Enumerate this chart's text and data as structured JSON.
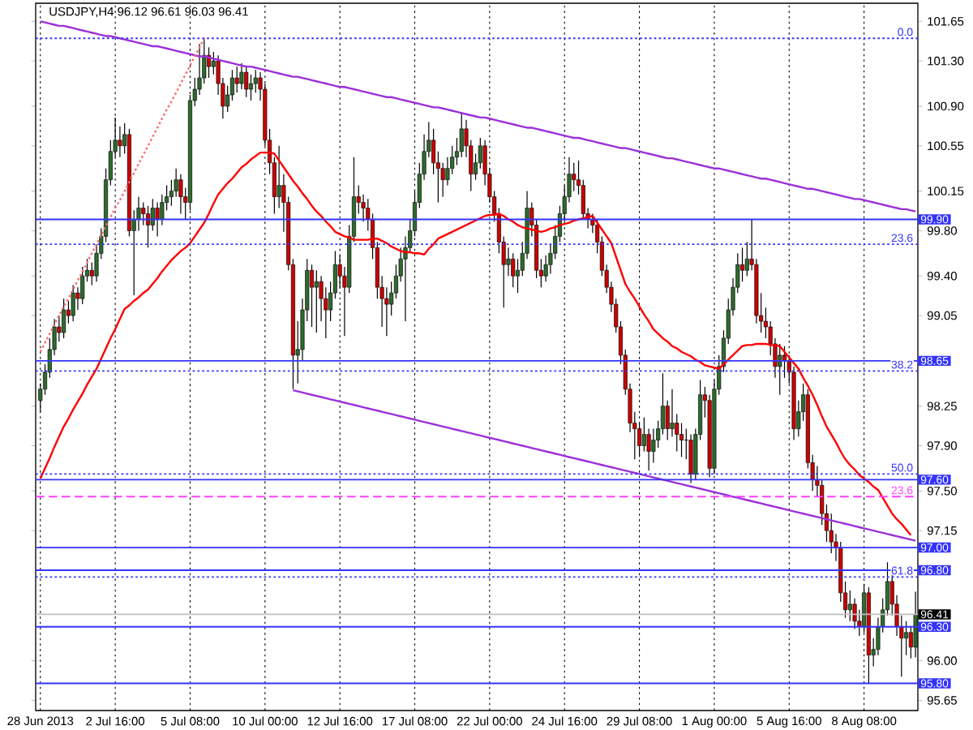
{
  "chart_data": {
    "type": "candlestick",
    "title": "USDJPY,H4  96.12 96.61 96.03 96.41",
    "categories": [
      "28 Jun 2013",
      null,
      null,
      null,
      null,
      null,
      null,
      null,
      null,
      null,
      null,
      null,
      null,
      null,
      null,
      null,
      "2 Jul 16:00",
      null,
      null,
      null,
      null,
      null,
      null,
      null,
      null,
      null,
      null,
      null,
      null,
      null,
      null,
      null,
      "5 Jul 08:00",
      null,
      null,
      null,
      null,
      null,
      null,
      null,
      null,
      null,
      null,
      null,
      null,
      null,
      null,
      null,
      "10 Jul 00:00",
      null,
      null,
      null,
      null,
      null,
      null,
      null,
      null,
      null,
      null,
      null,
      null,
      null,
      null,
      null,
      "12 Jul 16:00",
      null,
      null,
      null,
      null,
      null,
      null,
      null,
      null,
      null,
      null,
      null,
      null,
      null,
      null,
      null,
      "17 Jul 08:00",
      null,
      null,
      null,
      null,
      null,
      null,
      null,
      null,
      null,
      null,
      null,
      null,
      null,
      null,
      null,
      "22 Jul 00:00",
      null,
      null,
      null,
      null,
      null,
      null,
      null,
      null,
      null,
      null,
      null,
      null,
      null,
      null,
      null,
      "24 Jul 16:00",
      null,
      null,
      null,
      null,
      null,
      null,
      null,
      null,
      null,
      null,
      null,
      null,
      null,
      null,
      null,
      "29 Jul 08:00",
      null,
      null,
      null,
      null,
      null,
      null,
      null,
      null,
      null,
      null,
      null,
      null,
      null,
      null,
      null,
      "1 Aug 00:00",
      null,
      null,
      null,
      null,
      null,
      null,
      null,
      null,
      null,
      null,
      null,
      null,
      null,
      null,
      null,
      "5 Aug 16:00",
      null,
      null,
      null,
      null,
      null,
      null,
      null,
      null,
      null,
      null,
      null,
      null,
      null,
      null,
      null,
      "8 Aug 08:00",
      null,
      null,
      null,
      null,
      null,
      null,
      null,
      null,
      null,
      null,
      null
    ],
    "ohlc": [
      [
        98.3,
        98.45,
        98.2,
        98.4
      ],
      [
        98.4,
        98.62,
        98.35,
        98.55
      ],
      [
        98.55,
        98.85,
        98.5,
        98.75
      ],
      [
        98.75,
        99.02,
        98.7,
        98.95
      ],
      [
        98.95,
        99.05,
        98.82,
        98.9
      ],
      [
        98.9,
        99.2,
        98.85,
        99.1
      ],
      [
        99.1,
        99.18,
        98.98,
        99.05
      ],
      [
        99.05,
        99.32,
        99.0,
        99.25
      ],
      [
        99.25,
        99.3,
        99.1,
        99.2
      ],
      [
        99.2,
        99.48,
        99.15,
        99.4
      ],
      [
        99.4,
        99.55,
        99.35,
        99.45
      ],
      [
        99.45,
        99.52,
        99.32,
        99.4
      ],
      [
        99.4,
        99.68,
        99.35,
        99.6
      ],
      [
        99.6,
        99.82,
        99.55,
        99.75
      ],
      [
        99.75,
        100.35,
        99.7,
        100.25
      ],
      [
        100.25,
        100.6,
        100.2,
        100.5
      ],
      [
        100.5,
        100.8,
        100.45,
        100.6
      ],
      [
        100.6,
        100.72,
        100.45,
        100.55
      ],
      [
        100.55,
        100.75,
        100.48,
        100.65
      ],
      [
        100.65,
        100.7,
        99.75,
        99.8
      ],
      [
        99.8,
        99.98,
        99.23,
        99.9
      ],
      [
        99.9,
        100.1,
        99.8,
        100.0
      ],
      [
        100.0,
        100.05,
        99.85,
        99.95
      ],
      [
        99.95,
        100.02,
        99.65,
        99.85
      ],
      [
        99.85,
        100.08,
        99.8,
        100.0
      ],
      [
        100.0,
        100.05,
        99.75,
        99.9
      ],
      [
        99.9,
        100.12,
        99.85,
        100.05
      ],
      [
        100.05,
        100.2,
        99.98,
        100.1
      ],
      [
        100.1,
        100.25,
        100.02,
        100.15
      ],
      [
        100.15,
        100.35,
        100.1,
        100.25
      ],
      [
        100.25,
        100.3,
        99.95,
        100.1
      ],
      [
        100.1,
        100.18,
        99.9,
        100.05
      ],
      [
        100.05,
        101.0,
        99.98,
        100.95
      ],
      [
        100.95,
        101.15,
        100.9,
        101.05
      ],
      [
        101.05,
        101.45,
        101.0,
        101.15
      ],
      [
        101.15,
        101.5,
        101.1,
        101.35
      ],
      [
        101.35,
        101.42,
        101.15,
        101.25
      ],
      [
        101.25,
        101.38,
        101.18,
        101.3
      ],
      [
        101.3,
        101.35,
        101.0,
        101.1
      ],
      [
        101.1,
        101.15,
        100.79,
        100.9
      ],
      [
        100.9,
        101.08,
        100.85,
        101.0
      ],
      [
        101.0,
        101.22,
        100.95,
        101.15
      ],
      [
        101.15,
        101.25,
        101.02,
        101.1
      ],
      [
        101.1,
        101.28,
        101.05,
        101.2
      ],
      [
        101.2,
        101.25,
        100.98,
        101.05
      ],
      [
        101.05,
        101.18,
        100.95,
        101.1
      ],
      [
        101.1,
        101.22,
        101.02,
        101.15
      ],
      [
        101.15,
        101.2,
        100.95,
        101.05
      ],
      [
        101.05,
        101.1,
        100.55,
        100.6
      ],
      [
        100.6,
        100.7,
        100.3,
        100.4
      ],
      [
        100.4,
        100.45,
        99.95,
        100.1
      ],
      [
        100.1,
        100.55,
        100.0,
        100.2
      ],
      [
        100.2,
        100.3,
        99.79,
        100.05
      ],
      [
        100.05,
        100.1,
        99.45,
        99.5
      ],
      [
        99.5,
        99.55,
        98.4,
        98.7
      ],
      [
        98.7,
        99.0,
        98.45,
        98.75
      ],
      [
        98.75,
        99.2,
        98.65,
        99.1
      ],
      [
        99.1,
        99.55,
        99.0,
        99.45
      ],
      [
        99.45,
        99.5,
        98.95,
        99.3
      ],
      [
        99.3,
        99.45,
        98.9,
        99.35
      ],
      [
        99.35,
        99.4,
        99.0,
        99.2
      ],
      [
        99.2,
        99.3,
        98.85,
        99.1
      ],
      [
        99.1,
        99.35,
        99.0,
        99.25
      ],
      [
        99.25,
        99.62,
        99.2,
        99.5
      ],
      [
        99.5,
        99.58,
        99.3,
        99.4
      ],
      [
        99.4,
        99.48,
        98.87,
        99.3
      ],
      [
        99.3,
        99.85,
        99.25,
        99.75
      ],
      [
        99.75,
        100.45,
        99.7,
        100.1
      ],
      [
        100.1,
        100.2,
        99.95,
        100.05
      ],
      [
        100.05,
        100.12,
        99.88,
        100.0
      ],
      [
        100.0,
        100.08,
        99.8,
        99.9
      ],
      [
        99.9,
        99.95,
        99.55,
        99.65
      ],
      [
        99.65,
        99.7,
        99.2,
        99.3
      ],
      [
        99.3,
        99.4,
        98.95,
        99.2
      ],
      [
        99.2,
        99.3,
        98.87,
        99.15
      ],
      [
        99.15,
        99.35,
        99.05,
        99.25
      ],
      [
        99.25,
        99.5,
        99.2,
        99.4
      ],
      [
        99.4,
        99.65,
        99.35,
        99.55
      ],
      [
        99.55,
        99.75,
        99.0,
        99.65
      ],
      [
        99.65,
        99.9,
        99.6,
        99.8
      ],
      [
        99.8,
        100.15,
        99.75,
        100.05
      ],
      [
        100.05,
        100.4,
        100.0,
        100.3
      ],
      [
        100.3,
        100.65,
        100.25,
        100.5
      ],
      [
        100.5,
        100.76,
        100.45,
        100.6
      ],
      [
        100.6,
        100.7,
        100.3,
        100.4
      ],
      [
        100.4,
        100.5,
        100.05,
        100.35
      ],
      [
        100.35,
        100.4,
        100.1,
        100.25
      ],
      [
        100.25,
        100.45,
        100.2,
        100.35
      ],
      [
        100.35,
        100.55,
        100.3,
        100.45
      ],
      [
        100.45,
        100.62,
        100.38,
        100.5
      ],
      [
        100.5,
        100.85,
        100.45,
        100.7
      ],
      [
        100.7,
        100.78,
        100.45,
        100.55
      ],
      [
        100.55,
        100.6,
        100.15,
        100.3
      ],
      [
        100.3,
        100.48,
        100.25,
        100.4
      ],
      [
        100.4,
        100.62,
        100.35,
        100.55
      ],
      [
        100.55,
        100.6,
        100.2,
        100.3
      ],
      [
        100.3,
        100.35,
        100.05,
        100.1
      ],
      [
        100.1,
        100.15,
        99.88,
        99.95
      ],
      [
        99.95,
        100.0,
        99.6,
        99.7
      ],
      [
        99.7,
        99.75,
        99.12,
        99.5
      ],
      [
        99.5,
        99.65,
        99.4,
        99.55
      ],
      [
        99.55,
        99.6,
        99.3,
        99.4
      ],
      [
        99.4,
        99.55,
        99.25,
        99.45
      ],
      [
        99.45,
        99.7,
        99.4,
        99.6
      ],
      [
        99.6,
        100.15,
        99.55,
        100.0
      ],
      [
        100.0,
        100.05,
        99.75,
        99.85
      ],
      [
        99.85,
        99.9,
        99.38,
        99.45
      ],
      [
        99.45,
        99.55,
        99.3,
        99.4
      ],
      [
        99.4,
        99.58,
        99.35,
        99.5
      ],
      [
        99.5,
        99.68,
        99.42,
        99.6
      ],
      [
        99.6,
        99.85,
        99.55,
        99.75
      ],
      [
        99.75,
        100.02,
        99.7,
        99.95
      ],
      [
        99.95,
        100.2,
        99.88,
        100.1
      ],
      [
        100.1,
        100.45,
        100.05,
        100.3
      ],
      [
        100.3,
        100.4,
        100.15,
        100.25
      ],
      [
        100.25,
        100.42,
        100.12,
        100.2
      ],
      [
        100.2,
        100.25,
        99.9,
        99.95
      ],
      [
        99.95,
        100.0,
        99.82,
        99.9
      ],
      [
        99.9,
        99.95,
        99.78,
        99.85
      ],
      [
        99.85,
        99.9,
        99.6,
        99.7
      ],
      [
        99.7,
        99.75,
        99.4,
        99.45
      ],
      [
        99.45,
        99.5,
        99.25,
        99.3
      ],
      [
        99.3,
        99.35,
        99.08,
        99.15
      ],
      [
        99.15,
        99.2,
        98.9,
        98.95
      ],
      [
        98.95,
        99.0,
        98.62,
        98.7
      ],
      [
        98.7,
        98.75,
        98.35,
        98.4
      ],
      [
        98.4,
        98.45,
        98.02,
        98.1
      ],
      [
        98.1,
        98.2,
        97.78,
        98.05
      ],
      [
        98.05,
        98.1,
        97.8,
        97.9
      ],
      [
        97.9,
        98.15,
        97.85,
        98.0
      ],
      [
        98.0,
        98.05,
        97.68,
        97.85
      ],
      [
        97.85,
        98.05,
        97.75,
        97.95
      ],
      [
        97.95,
        98.12,
        97.88,
        98.05
      ],
      [
        98.05,
        98.54,
        98.0,
        98.25
      ],
      [
        98.25,
        98.3,
        97.95,
        98.05
      ],
      [
        98.05,
        98.4,
        97.98,
        98.1
      ],
      [
        98.1,
        98.18,
        97.85,
        98.0
      ],
      [
        98.0,
        98.1,
        97.8,
        97.95
      ],
      [
        97.95,
        98.05,
        97.78,
        97.95
      ],
      [
        97.95,
        98.0,
        97.57,
        97.65
      ],
      [
        97.65,
        98.05,
        97.6,
        98.0
      ],
      [
        98.0,
        98.48,
        97.95,
        98.35
      ],
      [
        98.35,
        98.42,
        98.15,
        98.3
      ],
      [
        98.3,
        98.35,
        97.62,
        97.7
      ],
      [
        97.7,
        98.48,
        97.65,
        98.4
      ],
      [
        98.4,
        98.7,
        98.35,
        98.6
      ],
      [
        98.6,
        98.92,
        98.55,
        98.85
      ],
      [
        98.85,
        99.2,
        98.8,
        99.1
      ],
      [
        99.1,
        99.38,
        99.05,
        99.3
      ],
      [
        99.3,
        99.6,
        99.25,
        99.5
      ],
      [
        99.5,
        99.65,
        99.35,
        99.45
      ],
      [
        99.45,
        99.7,
        99.4,
        99.55
      ],
      [
        99.55,
        99.9,
        99.45,
        99.5
      ],
      [
        99.5,
        99.55,
        98.98,
        99.05
      ],
      [
        99.05,
        99.25,
        98.9,
        99.0
      ],
      [
        99.0,
        99.12,
        98.85,
        98.95
      ],
      [
        98.95,
        99.0,
        98.7,
        98.8
      ],
      [
        98.8,
        98.85,
        98.5,
        98.6
      ],
      [
        98.6,
        98.8,
        98.35,
        98.7
      ],
      [
        98.7,
        98.78,
        98.5,
        98.65
      ],
      [
        98.65,
        98.7,
        98.45,
        98.55
      ],
      [
        98.55,
        98.6,
        97.95,
        98.05
      ],
      [
        98.05,
        98.3,
        97.98,
        98.2
      ],
      [
        98.2,
        98.45,
        98.12,
        98.35
      ],
      [
        98.35,
        98.4,
        97.7,
        97.75
      ],
      [
        97.75,
        97.82,
        97.5,
        97.6
      ],
      [
        97.6,
        97.72,
        97.45,
        97.55
      ],
      [
        97.55,
        97.6,
        97.2,
        97.3
      ],
      [
        97.3,
        97.38,
        97.05,
        97.15
      ],
      [
        97.15,
        97.3,
        96.95,
        97.05
      ],
      [
        97.05,
        97.12,
        96.88,
        97.0
      ],
      [
        97.0,
        97.05,
        96.52,
        96.6
      ],
      [
        96.6,
        96.7,
        96.38,
        96.45
      ],
      [
        96.45,
        96.62,
        96.35,
        96.5
      ],
      [
        96.5,
        96.55,
        96.28,
        96.35
      ],
      [
        96.35,
        96.45,
        96.22,
        96.3
      ],
      [
        96.3,
        96.68,
        96.25,
        96.6
      ],
      [
        96.6,
        96.65,
        95.8,
        96.05
      ],
      [
        96.05,
        96.2,
        95.95,
        96.1
      ],
      [
        96.1,
        96.38,
        96.05,
        96.3
      ],
      [
        96.3,
        96.55,
        96.25,
        96.45
      ],
      [
        96.45,
        96.87,
        96.4,
        96.7
      ],
      [
        96.7,
        96.78,
        96.4,
        96.5
      ],
      [
        96.5,
        96.58,
        96.22,
        96.3
      ],
      [
        96.3,
        96.4,
        95.86,
        96.2
      ],
      [
        96.2,
        96.35,
        96.05,
        96.25
      ],
      [
        96.25,
        96.3,
        96.02,
        96.12
      ],
      [
        96.12,
        96.61,
        96.03,
        96.41
      ]
    ],
    "series": [
      {
        "type": "line",
        "color": "#ff0000",
        "values": [
          97.61,
          97.7,
          97.79,
          97.89,
          97.98,
          98.07,
          98.14,
          98.22,
          98.29,
          98.36,
          98.44,
          98.51,
          98.58,
          98.67,
          98.76,
          98.85,
          98.93,
          99.02,
          99.11,
          99.14,
          99.18,
          99.21,
          99.25,
          99.28,
          99.33,
          99.38,
          99.44,
          99.49,
          99.54,
          99.58,
          99.62,
          99.65,
          99.69,
          99.75,
          99.81,
          99.87,
          99.95,
          100.04,
          100.12,
          100.17,
          100.22,
          100.26,
          100.31,
          100.36,
          100.39,
          100.43,
          100.46,
          100.49,
          100.49,
          100.49,
          100.48,
          100.42,
          100.36,
          100.3,
          100.24,
          100.19,
          100.13,
          100.08,
          100.02,
          99.97,
          99.93,
          99.88,
          99.84,
          99.79,
          99.77,
          99.75,
          99.74,
          99.72,
          99.72,
          99.72,
          99.72,
          99.73,
          99.73,
          99.71,
          99.69,
          99.66,
          99.64,
          99.62,
          99.61,
          99.61,
          99.6,
          99.6,
          99.59,
          99.64,
          99.68,
          99.73,
          99.75,
          99.77,
          99.79,
          99.81,
          99.83,
          99.85,
          99.87,
          99.89,
          99.91,
          99.93,
          99.94,
          99.94,
          99.95,
          99.93,
          99.9,
          99.88,
          99.85,
          99.83,
          99.82,
          99.81,
          99.8,
          99.79,
          99.8,
          99.82,
          99.83,
          99.85,
          99.86,
          99.87,
          99.89,
          99.9,
          99.91,
          99.92,
          99.93,
          99.87,
          99.81,
          99.75,
          99.69,
          99.57,
          99.45,
          99.33,
          99.26,
          99.2,
          99.13,
          99.06,
          99.0,
          98.93,
          98.89,
          98.85,
          98.82,
          98.78,
          98.76,
          98.73,
          98.71,
          98.69,
          98.66,
          98.64,
          98.61,
          98.6,
          98.59,
          98.58,
          98.62,
          98.66,
          98.7,
          98.74,
          98.78,
          98.79,
          98.79,
          98.8,
          98.8,
          98.8,
          98.79,
          98.79,
          98.78,
          98.73,
          98.68,
          98.63,
          98.58,
          98.5,
          98.43,
          98.35,
          98.26,
          98.16,
          98.07,
          98.0,
          97.93,
          97.85,
          97.78,
          97.73,
          97.69,
          97.64,
          97.61,
          97.58,
          97.54,
          97.51,
          97.44,
          97.37,
          97.3,
          97.25,
          97.21,
          97.16,
          97.11,
          null
        ]
      },
      {
        "type": "line",
        "color": "#9b30d9",
        "values": [
          101.65,
          101.64,
          101.63,
          101.62,
          101.61,
          101.61,
          101.6,
          101.59,
          101.58,
          101.57,
          101.56,
          101.55,
          101.54,
          101.53,
          101.52,
          101.52,
          101.51,
          101.5,
          101.49,
          101.48,
          101.47,
          101.46,
          101.45,
          101.44,
          101.43,
          101.43,
          101.42,
          101.41,
          101.4,
          101.39,
          101.38,
          101.37,
          101.36,
          101.35,
          101.34,
          101.34,
          101.33,
          101.32,
          101.31,
          101.3,
          101.29,
          101.28,
          101.27,
          101.26,
          101.25,
          101.25,
          101.24,
          101.23,
          101.22,
          101.21,
          101.2,
          101.19,
          101.18,
          101.17,
          101.16,
          101.16,
          101.15,
          101.14,
          101.13,
          101.12,
          101.11,
          101.1,
          101.09,
          101.08,
          101.07,
          101.07,
          101.06,
          101.05,
          101.04,
          101.03,
          101.02,
          101.01,
          101.0,
          100.99,
          100.98,
          100.98,
          100.97,
          100.96,
          100.95,
          100.94,
          100.93,
          100.92,
          100.91,
          100.9,
          100.89,
          100.89,
          100.88,
          100.87,
          100.86,
          100.85,
          100.84,
          100.83,
          100.82,
          100.81,
          100.8,
          100.8,
          100.79,
          100.78,
          100.77,
          100.76,
          100.75,
          100.74,
          100.73,
          100.72,
          100.71,
          100.71,
          100.7,
          100.69,
          100.68,
          100.67,
          100.66,
          100.65,
          100.64,
          100.63,
          100.62,
          100.62,
          100.61,
          100.6,
          100.59,
          100.58,
          100.57,
          100.56,
          100.55,
          100.54,
          100.53,
          100.53,
          100.52,
          100.51,
          100.5,
          100.49,
          100.48,
          100.47,
          100.46,
          100.45,
          100.44,
          100.44,
          100.43,
          100.42,
          100.41,
          100.4,
          100.39,
          100.38,
          100.37,
          100.36,
          100.35,
          100.35,
          100.34,
          100.33,
          100.32,
          100.31,
          100.3,
          100.29,
          100.28,
          100.27,
          100.26,
          100.26,
          100.25,
          100.24,
          100.23,
          100.22,
          100.21,
          100.2,
          100.19,
          100.18,
          100.17,
          100.17,
          100.16,
          100.15,
          100.14,
          100.13,
          100.12,
          100.11,
          100.1,
          100.09,
          100.08,
          100.08,
          100.07,
          100.06,
          100.05,
          100.04,
          100.03,
          100.02,
          100.01,
          100.0,
          99.99,
          99.99,
          99.98,
          99.97
        ]
      },
      {
        "type": "line",
        "color": "#9b30d9",
        "values": [
          null,
          null,
          null,
          null,
          null,
          null,
          null,
          null,
          null,
          null,
          null,
          null,
          null,
          null,
          null,
          null,
          null,
          null,
          null,
          null,
          null,
          null,
          null,
          null,
          null,
          null,
          null,
          null,
          null,
          null,
          null,
          null,
          null,
          null,
          null,
          null,
          null,
          null,
          null,
          null,
          null,
          null,
          null,
          null,
          null,
          null,
          null,
          null,
          null,
          null,
          null,
          null,
          null,
          null,
          98.39,
          98.38,
          98.37,
          98.36,
          98.35,
          98.34,
          98.33,
          98.32,
          98.31,
          98.3,
          98.29,
          98.28,
          98.27,
          98.26,
          98.25,
          98.24,
          98.23,
          98.22,
          98.21,
          98.2,
          98.19,
          98.18,
          98.17,
          98.16,
          98.15,
          98.14,
          98.13,
          98.12,
          98.11,
          98.1,
          98.09,
          98.08,
          98.07,
          98.06,
          98.05,
          98.04,
          98.03,
          98.02,
          98.01,
          98.0,
          97.99,
          97.98,
          97.97,
          97.96,
          97.95,
          97.94,
          97.93,
          97.92,
          97.91,
          97.9,
          97.89,
          97.88,
          97.87,
          97.86,
          97.85,
          97.84,
          97.83,
          97.82,
          97.81,
          97.8,
          97.79,
          97.78,
          97.77,
          97.76,
          97.75,
          97.74,
          97.73,
          97.72,
          97.71,
          97.7,
          97.69,
          97.68,
          97.67,
          97.66,
          97.65,
          97.64,
          97.63,
          97.62,
          97.61,
          97.6,
          97.59,
          97.58,
          97.57,
          97.56,
          97.55,
          97.54,
          97.53,
          97.52,
          97.51,
          97.5,
          97.49,
          97.48,
          97.47,
          97.46,
          97.45,
          97.44,
          97.43,
          97.42,
          97.41,
          97.4,
          97.39,
          97.38,
          97.37,
          97.36,
          97.35,
          97.34,
          97.33,
          97.32,
          97.31,
          97.3,
          97.29,
          97.28,
          97.27,
          97.26,
          97.25,
          97.24,
          97.23,
          97.22,
          97.21,
          97.2,
          97.19,
          97.18,
          97.17,
          97.16,
          97.15,
          97.14,
          97.13,
          97.12,
          97.11,
          97.1,
          97.09,
          97.08,
          97.07,
          97.06
        ]
      },
      {
        "type": "line",
        "color": "#ff6b6b",
        "line_style": "dotted",
        "values": [
          98.73,
          98.81,
          98.89,
          98.97,
          99.05,
          99.13,
          99.2,
          99.28,
          99.36,
          99.44,
          99.52,
          99.6,
          99.68,
          99.76,
          99.84,
          99.92,
          100.0,
          100.07,
          100.15,
          100.23,
          100.31,
          100.39,
          100.47,
          100.55,
          100.63,
          100.71,
          100.79,
          100.87,
          100.94,
          101.02,
          101.1,
          101.18,
          101.26,
          101.34,
          101.42,
          101.5,
          null,
          null,
          null,
          null,
          null,
          null,
          null,
          null,
          null,
          null,
          null,
          null,
          null,
          null,
          null,
          null,
          null,
          null,
          null,
          null,
          null,
          null,
          null,
          null,
          null,
          null,
          null,
          null,
          null,
          null,
          null,
          null,
          null,
          null,
          null,
          null,
          null,
          null,
          null,
          null,
          null,
          null,
          null,
          null,
          null,
          null,
          null,
          null,
          null,
          null,
          null,
          null,
          null,
          null,
          null,
          null,
          null,
          null,
          null,
          null,
          null,
          null,
          null,
          null,
          null,
          null,
          null,
          null,
          null,
          null,
          null,
          null,
          null,
          null,
          null,
          null,
          null,
          null,
          null,
          null,
          null,
          null,
          null,
          null,
          null,
          null,
          null,
          null,
          null,
          null,
          null,
          null,
          null,
          null,
          null,
          null,
          null,
          null,
          null,
          null,
          null,
          null,
          null,
          null,
          null,
          null,
          null,
          null,
          null,
          null,
          null,
          null,
          null,
          null,
          null,
          null,
          null,
          null,
          null,
          null,
          null,
          null,
          null,
          null,
          null,
          null,
          null,
          null,
          null,
          null,
          null,
          null,
          null,
          null,
          null,
          null,
          null,
          null,
          null,
          null,
          null,
          null,
          null,
          null,
          null,
          null,
          null,
          null,
          null,
          null,
          null,
          null
        ]
      }
    ],
    "annotations": [
      {
        "text": "0.0",
        "y": 101.5
      },
      {
        "text": "23.6",
        "y": 99.68
      },
      {
        "text": "38.2",
        "y": 98.56
      },
      {
        "text": "50.0",
        "y": 97.65
      },
      {
        "text": "23.6",
        "y": 97.45
      },
      {
        "text": "61.8",
        "y": 96.74
      }
    ],
    "ylim": [
      95.56,
      101.81
    ],
    "yticks": [
      101.65,
      {
        "value": 101.3,
        "label": "101.30"
      },
      {
        "value": 100.9,
        "label": "100.90"
      },
      100.55,
      100.15,
      {
        "value": 99.8,
        "label": "99.80"
      },
      {
        "value": 99.4,
        "label": "99.40"
      },
      99.05,
      98.25,
      {
        "value": 97.9,
        "label": "97.90"
      },
      {
        "value": 97.5,
        "label": "97.50"
      },
      97.15,
      {
        "value": 96.0,
        "label": "96.00"
      },
      95.65
    ],
    "ref_lines": [
      {
        "axis": "y",
        "value": 101.5,
        "color": "#3333ff",
        "line_style": "dotted"
      },
      {
        "axis": "y",
        "value": 99.9,
        "label": "99.90",
        "color": "#3333ff"
      },
      {
        "axis": "y",
        "value": 99.68,
        "color": "#3333ff",
        "line_style": "dotted"
      },
      {
        "axis": "y",
        "value": 98.65,
        "label": "98.65",
        "color": "#3333ff"
      },
      {
        "axis": "y",
        "value": 98.56,
        "color": "#3333ff",
        "line_style": "dotted"
      },
      {
        "axis": "y",
        "value": 97.65,
        "color": "#3333ff",
        "line_style": "dotted"
      },
      {
        "axis": "y",
        "value": 97.6,
        "label": "97.60",
        "color": "#3333ff"
      },
      {
        "axis": "y",
        "value": 97.45,
        "color": "#ff40ff",
        "line_style": "dashed"
      },
      {
        "axis": "y",
        "value": 97.0,
        "label": "97.00",
        "color": "#3333ff"
      },
      {
        "axis": "y",
        "value": 96.8,
        "label": "96.80",
        "color": "#3333ff"
      },
      {
        "axis": "y",
        "value": 96.74,
        "color": "#3333ff",
        "line_style": "dotted"
      },
      {
        "axis": "y",
        "value": 96.41,
        "label": "96.41",
        "color": "#c0c0c0"
      },
      {
        "axis": "y",
        "value": 96.3,
        "label": "96.30",
        "color": "#3333ff"
      },
      {
        "axis": "y",
        "value": 95.8,
        "label": "95.80",
        "color": "#3333ff"
      }
    ],
    "grid": "x"
  }
}
